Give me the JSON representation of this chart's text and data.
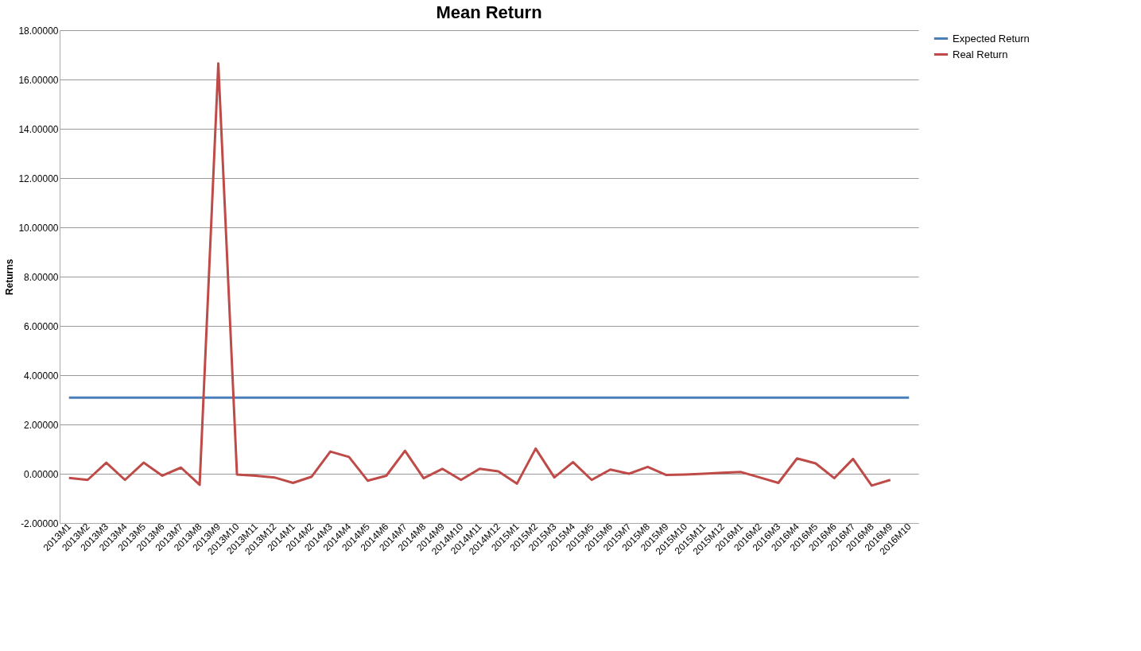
{
  "chart_data": {
    "type": "line",
    "title": "Mean Return",
    "ylabel": "Returns",
    "categories": [
      "2013M1",
      "2013M2",
      "2013M3",
      "2013M4",
      "2013M5",
      "2013M6",
      "2013M7",
      "2013M8",
      "2013M9",
      "2013M10",
      "2013M11",
      "2013M12",
      "2014M1",
      "2014M2",
      "2014M3",
      "2014M4",
      "2014M5",
      "2014M6",
      "2014M7",
      "2014M8",
      "2014M9",
      "2014M10",
      "2014M11",
      "2014M12",
      "2015M1",
      "2015M2",
      "2015M3",
      "2015M4",
      "2015M5",
      "2015M6",
      "2015M7",
      "2015M8",
      "2015M9",
      "2015M10",
      "2015M11",
      "2015M12",
      "2016M1",
      "2016M2",
      "2016M3",
      "2016M4",
      "2016M5",
      "2016M6",
      "2016M7",
      "2016M8",
      "2016M9",
      "2016M10"
    ],
    "series": [
      {
        "name": "Expected Return",
        "color": "#4a7ebb",
        "values": [
          3.09,
          3.09,
          3.09,
          3.09,
          3.09,
          3.09,
          3.09,
          3.09,
          3.09,
          3.09,
          3.09,
          3.09,
          3.09,
          3.09,
          3.09,
          3.09,
          3.09,
          3.09,
          3.09,
          3.09,
          3.09,
          3.09,
          3.09,
          3.09,
          3.09,
          3.09,
          3.09,
          3.09,
          3.09,
          3.09,
          3.09,
          3.09,
          3.09,
          3.09,
          3.09,
          3.09,
          3.09,
          3.09,
          3.09,
          3.09,
          3.09,
          3.09,
          3.09,
          3.09,
          3.09,
          3.09
        ]
      },
      {
        "name": "Real Return",
        "color": "#be4b48",
        "values": [
          -0.17,
          -0.25,
          0.45,
          -0.25,
          0.45,
          -0.08,
          0.25,
          -0.45,
          16.65,
          -0.03,
          -0.08,
          -0.15,
          -0.37,
          -0.12,
          0.9,
          0.68,
          -0.28,
          -0.08,
          0.93,
          -0.18,
          0.2,
          -0.25,
          0.2,
          0.1,
          -0.4,
          1.02,
          -0.15,
          0.47,
          -0.25,
          0.17,
          0.0,
          0.28,
          -0.05,
          -0.03,
          0.0,
          0.04,
          0.07,
          -0.15,
          -0.37,
          0.62,
          0.42,
          -0.18,
          0.6,
          -0.48,
          -0.25,
          null
        ]
      }
    ],
    "ylim": [
      -2,
      18
    ],
    "yticks": [
      {
        "value": -2,
        "label": "-2.00000"
      },
      {
        "value": 0,
        "label": "0.00000"
      },
      {
        "value": 2,
        "label": "2.00000"
      },
      {
        "value": 4,
        "label": "4.00000"
      },
      {
        "value": 6,
        "label": "6.00000"
      },
      {
        "value": 8,
        "label": "8.00000"
      },
      {
        "value": 10,
        "label": "10.00000"
      },
      {
        "value": 12,
        "label": "12.00000"
      },
      {
        "value": 14,
        "label": "14.00000"
      },
      {
        "value": 16,
        "label": "16.00000"
      },
      {
        "value": 18,
        "label": "18.00000"
      }
    ],
    "grid": "y",
    "legend": "right",
    "marker": "none",
    "line_style": "solid"
  }
}
